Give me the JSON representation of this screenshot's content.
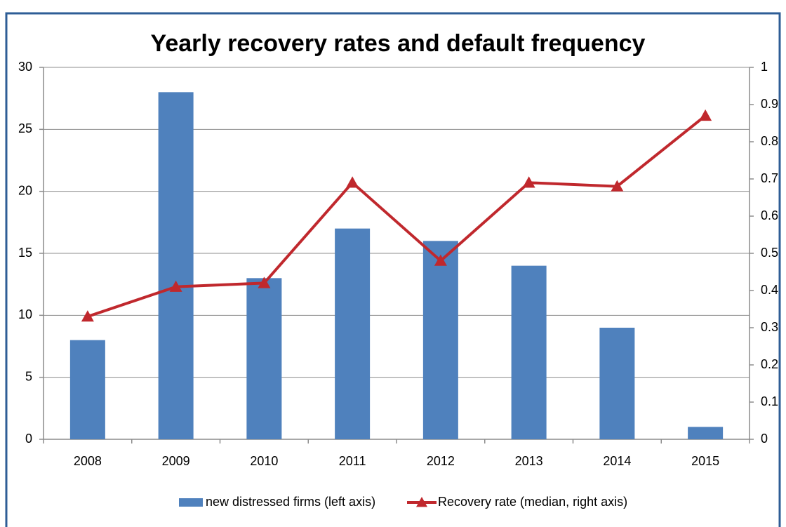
{
  "chart_data": {
    "type": "bar-line",
    "title": "Yearly recovery rates and default frequency",
    "categories": [
      "2008",
      "2009",
      "2010",
      "2011",
      "2012",
      "2013",
      "2014",
      "2015"
    ],
    "series": [
      {
        "name": "new distressed firms (left axis)",
        "color": "#4f81bd",
        "type": "bar",
        "values": [
          8,
          28,
          13,
          17,
          16,
          14,
          9,
          1
        ]
      },
      {
        "name": "Recovery rate (median, right axis)",
        "color": "#c0282d",
        "type": "line",
        "axis": "y2",
        "values": [
          0.33,
          0.41,
          0.42,
          0.69,
          0.48,
          0.69,
          0.68,
          0.87
        ]
      }
    ],
    "ylim": [
      0,
      30
    ],
    "yticks": [
      0,
      5,
      10,
      15,
      20,
      25,
      30
    ],
    "y2lim": [
      0,
      1
    ],
    "y2ticks": [
      0,
      0.1,
      0.2,
      0.3,
      0.4,
      0.5,
      0.6,
      0.7,
      0.8,
      0.9,
      1
    ],
    "grid": true,
    "legend": "bottom"
  }
}
